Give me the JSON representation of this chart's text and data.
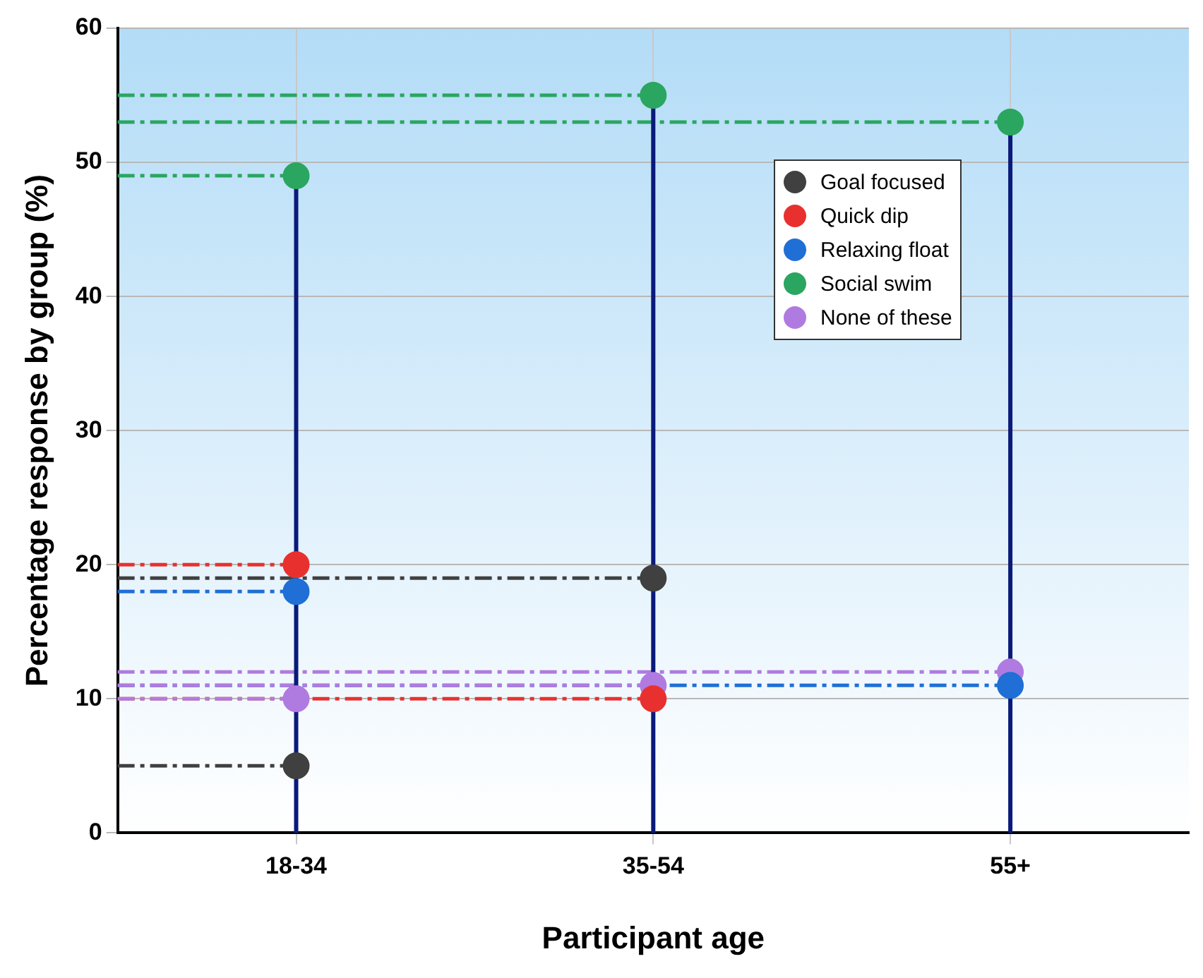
{
  "chart_data": {
    "type": "scatter",
    "categories": [
      "18-34",
      "35-54",
      "55+"
    ],
    "xlabel": "Participant age",
    "ylabel": "Percentage response by group (%)",
    "ylim": [
      0,
      60
    ],
    "yticks": [
      0,
      10,
      20,
      30,
      40,
      50,
      60
    ],
    "grid": true,
    "legend": "top right",
    "marker": "circle",
    "ref_lines": [
      {
        "axis": "y",
        "value": 5,
        "color": "#404040",
        "line_style": "dashed"
      },
      {
        "axis": "y",
        "value": 19,
        "color": "#404040",
        "line_style": "dashed"
      },
      {
        "axis": "y",
        "value": 20,
        "color": "#e8312f",
        "line_style": "dashed"
      },
      {
        "axis": "y",
        "value": 10,
        "color": "#e8312f",
        "line_style": "dashed"
      },
      {
        "axis": "y",
        "value": 18,
        "color": "#1f6fd6",
        "line_style": "dashed"
      },
      {
        "axis": "y",
        "value": 11,
        "color": "#1f6fd6",
        "line_style": "dashed"
      },
      {
        "axis": "y",
        "value": 49,
        "color": "#2aa660",
        "line_style": "dashed"
      },
      {
        "axis": "y",
        "value": 55,
        "color": "#2aa660",
        "line_style": "dashed"
      },
      {
        "axis": "y",
        "value": 53,
        "color": "#2aa660",
        "line_style": "dashed"
      },
      {
        "axis": "y",
        "value": 10,
        "color": "#b07be0",
        "line_style": "dashed"
      },
      {
        "axis": "y",
        "value": 11,
        "color": "#b07be0",
        "line_style": "dashed"
      },
      {
        "axis": "y",
        "value": 12,
        "color": "#b07be0",
        "line_style": "dashed"
      }
    ],
    "series": [
      {
        "name": "Goal focused",
        "color": "#404040",
        "values": [
          5,
          19,
          null
        ]
      },
      {
        "name": "Quick dip",
        "color": "#e8312f",
        "values": [
          20,
          10,
          null
        ]
      },
      {
        "name": "Relaxing float",
        "color": "#1f6fd6",
        "values": [
          18,
          null,
          11
        ]
      },
      {
        "name": "Social swim",
        "color": "#2aa660",
        "values": [
          49,
          55,
          53
        ]
      },
      {
        "name": "None of these",
        "color": "#b07be0",
        "values": [
          10,
          11,
          12
        ]
      }
    ]
  }
}
